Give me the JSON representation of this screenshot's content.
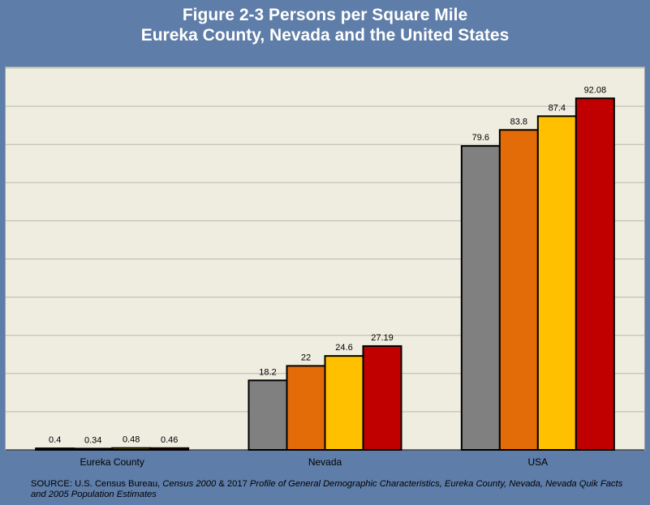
{
  "title": {
    "line1": "Figure 2-3 Persons per Square Mile",
    "line2": "Eureka County, Nevada and the United States"
  },
  "chart_data": {
    "type": "bar",
    "categories": [
      "Eureka County",
      "Nevada",
      "USA"
    ],
    "series": [
      {
        "color": "#808080",
        "values": [
          0.4,
          18.2,
          79.6
        ]
      },
      {
        "color": "#e36c09",
        "values": [
          0.34,
          22,
          83.8
        ]
      },
      {
        "color": "#ffc000",
        "values": [
          0.48,
          24.6,
          87.4
        ]
      },
      {
        "color": "#c00000",
        "values": [
          0.46,
          27.19,
          92.08
        ]
      }
    ],
    "data_labels": [
      [
        "0.4",
        "18.2",
        "79.6"
      ],
      [
        "0.34",
        "22",
        "83.8"
      ],
      [
        "0.48",
        "24.6",
        "87.4"
      ],
      [
        "0.46",
        "27.19",
        "92.08"
      ]
    ],
    "ylim": [
      0,
      100
    ],
    "grid": true,
    "grid_step": 10
  },
  "source": {
    "prefix": "SOURCE: U.S. Census Bureau, ",
    "part1_italic": "Census 2000",
    "middle": " & 2017 ",
    "part2_italic": "Profile of General Demographic Characteristics, Eureka County, Nevada, Nevada Quik Facts and 2005 Population Estimates"
  }
}
